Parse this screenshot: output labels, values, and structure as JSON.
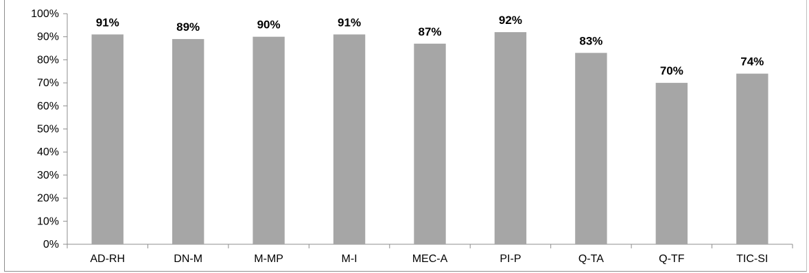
{
  "chart_data": {
    "type": "bar",
    "categories": [
      "AD-RH",
      "DN-M",
      "M-MP",
      "M-I",
      "MEC-A",
      "PI-P",
      "Q-TA",
      "Q-TF",
      "TIC-SI"
    ],
    "values": [
      91,
      89,
      90,
      91,
      87,
      92,
      83,
      70,
      74
    ],
    "data_labels": [
      "91%",
      "89%",
      "90%",
      "91%",
      "87%",
      "92%",
      "83%",
      "70%",
      "74%"
    ],
    "title": "",
    "xlabel": "",
    "ylabel": "",
    "ylim": [
      0,
      100
    ],
    "y_ticks": [
      0,
      10,
      20,
      30,
      40,
      50,
      60,
      70,
      80,
      90,
      100
    ],
    "y_tick_labels": [
      "0%",
      "10%",
      "20%",
      "30%",
      "40%",
      "50%",
      "60%",
      "70%",
      "80%",
      "90%",
      "100%"
    ],
    "grid": false,
    "legend": "none",
    "bar_color": "#a6a6a6",
    "axis_color": "#8c8c8c"
  }
}
